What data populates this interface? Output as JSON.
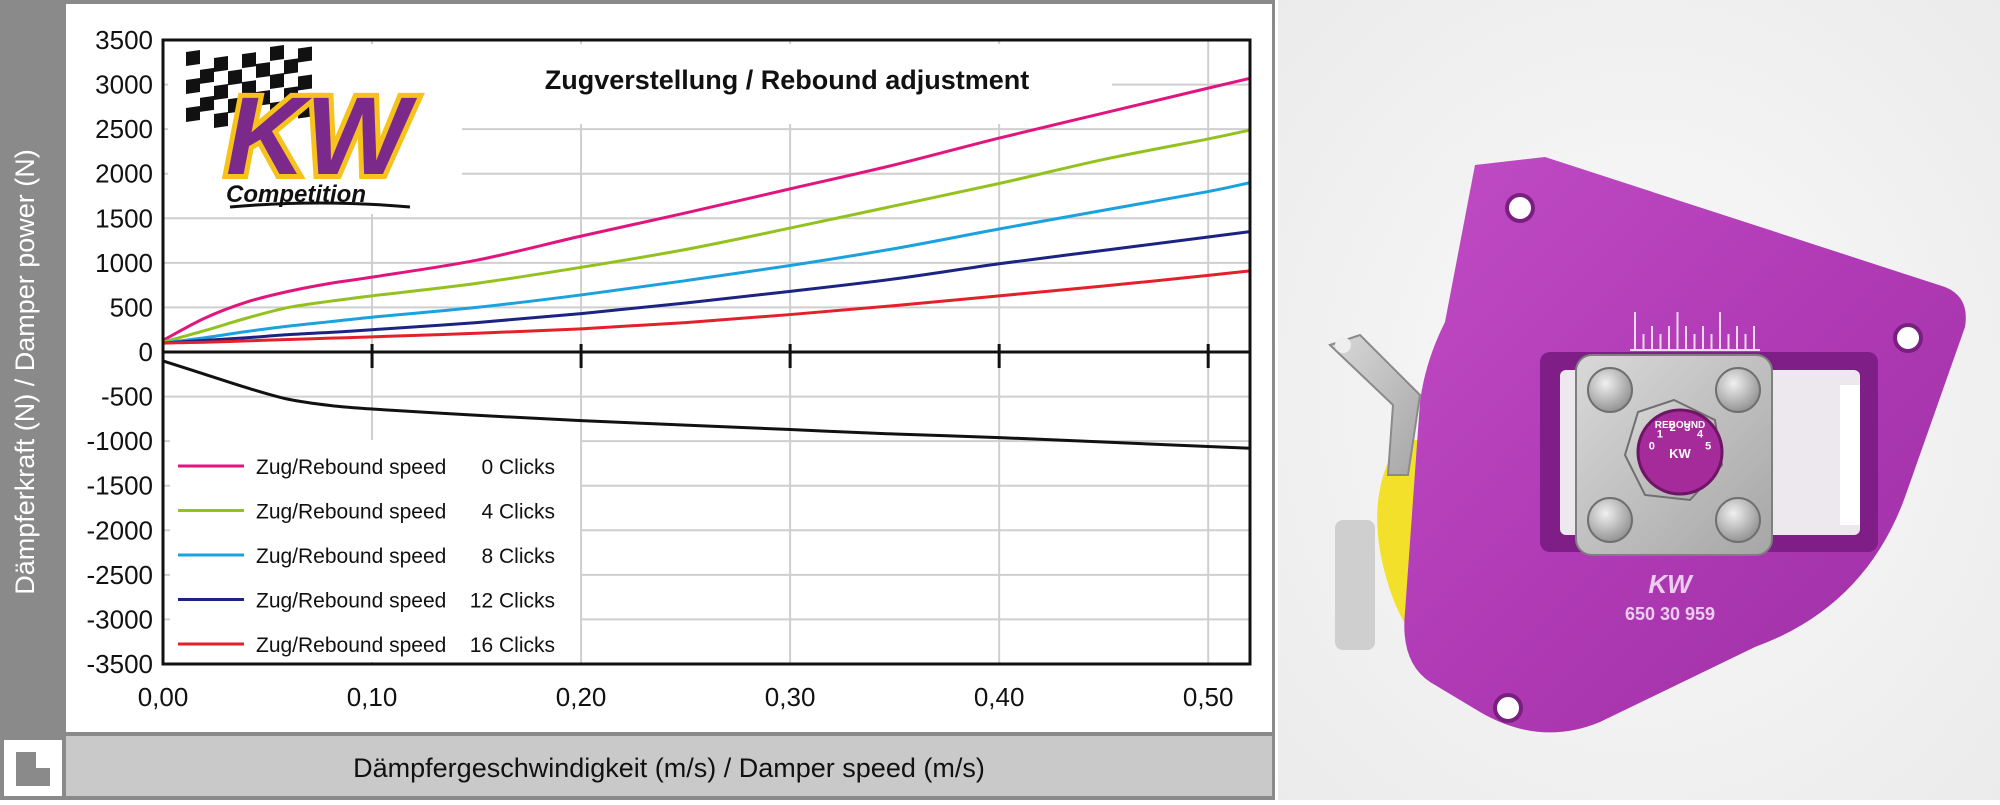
{
  "chart_data": {
    "type": "line",
    "title": "Zugverstellung / Rebound adjustment",
    "xlabel": "Dämpfergeschwindigkeit (m/s) / Damper speed (m/s)",
    "ylabel": "Dämpferkraft (N) / Damper power (N)",
    "xlim": [
      0,
      0.52
    ],
    "ylim": [
      -3500,
      3500
    ],
    "x_ticks": [
      0,
      0.1,
      0.2,
      0.3,
      0.4,
      0.5
    ],
    "x_tick_labels": [
      "0,00",
      "0,10",
      "0,20",
      "0,30",
      "0,40",
      "0,50"
    ],
    "y_ticks": [
      3500,
      3000,
      2500,
      2000,
      1500,
      1000,
      500,
      0,
      -500,
      -1000,
      -1500,
      -2000,
      -2500,
      -3000,
      -3500
    ],
    "y_tick_labels": [
      "3500",
      "3000",
      "2500",
      "2000",
      "1500",
      "1000",
      "500",
      "0",
      "-500",
      "-1000",
      "-1500",
      "-2000",
      "-2500",
      "-3000",
      "-3500"
    ],
    "grid": true,
    "legend_position": "bottom-left",
    "x": [
      0,
      0.02,
      0.04,
      0.06,
      0.08,
      0.1,
      0.15,
      0.2,
      0.25,
      0.3,
      0.35,
      0.4,
      0.45,
      0.5,
      0.52
    ],
    "series": [
      {
        "name": "Zug/Rebound speed",
        "clicks": "0 Clicks",
        "color": "#e0157d",
        "values": [
          130,
          380,
          560,
          680,
          770,
          840,
          1030,
          1300,
          1560,
          1830,
          2100,
          2400,
          2680,
          2960,
          3070
        ]
      },
      {
        "name": "Zug/Rebound speed",
        "clicks": "4 Clicks",
        "color": "#93c21f",
        "values": [
          110,
          240,
          380,
          500,
          570,
          630,
          770,
          950,
          1150,
          1390,
          1640,
          1890,
          2160,
          2390,
          2490
        ]
      },
      {
        "name": "Zug/Rebound speed",
        "clicks": "8 Clicks",
        "color": "#1aa1de",
        "values": [
          100,
          160,
          230,
          290,
          340,
          390,
          500,
          640,
          800,
          970,
          1160,
          1380,
          1590,
          1800,
          1900
        ]
      },
      {
        "name": "Zug/Rebound speed",
        "clicks": "12 Clicks",
        "color": "#1c2380",
        "values": [
          100,
          130,
          160,
          195,
          220,
          250,
          330,
          430,
          550,
          680,
          820,
          990,
          1140,
          1290,
          1350
        ]
      },
      {
        "name": "Zug/Rebound speed",
        "clicks": "16 Clicks",
        "color": "#e4202a",
        "values": [
          100,
          110,
          125,
          140,
          155,
          170,
          210,
          260,
          330,
          420,
          520,
          630,
          740,
          860,
          910
        ]
      },
      {
        "name": "",
        "clicks": "",
        "color": "#111111",
        "values": [
          -100,
          -250,
          -400,
          -530,
          -600,
          -640,
          -710,
          -770,
          -820,
          -870,
          -920,
          -960,
          -1010,
          -1060,
          -1080
        ]
      }
    ]
  },
  "logo": {
    "brand": "KW",
    "sub": "Competition",
    "colors": {
      "purple": "#7b2a8b",
      "yellow": "#f7c21c"
    }
  },
  "photo": {
    "scale_label": "REBOUND",
    "knob_digits": [
      "0",
      "1",
      "2",
      "3",
      "4",
      "5"
    ],
    "part_brand": "KW",
    "part_number": "650 30 959",
    "colors": {
      "plate": "#b33ab8",
      "bolt": "#c9c9c9",
      "spring": "#f2e02a"
    }
  }
}
